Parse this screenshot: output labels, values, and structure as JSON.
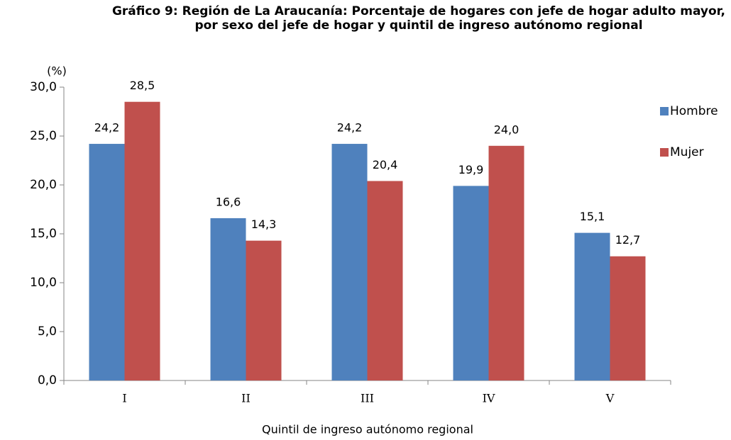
{
  "chart_data": {
    "type": "bar",
    "title": "Gráfico 9: Región de La Araucanía: Porcentaje de hogares con jefe de hogar adulto mayor,  por sexo del jefe de hogar y quintil de ingreso autónomo regional",
    "y_unit": "(%)",
    "x_label": "Quintil de ingreso autónomo regional",
    "categories": [
      "I",
      "II",
      "III",
      "IV",
      "V"
    ],
    "series": [
      {
        "name": "Hombre",
        "color": "#4f81bd",
        "values": [
          24.2,
          16.6,
          24.2,
          19.9,
          15.1
        ],
        "value_labels": [
          "24,2",
          "16,6",
          "24,2",
          "19,9",
          "15,1"
        ]
      },
      {
        "name": "Mujer",
        "color": "#c0504d",
        "values": [
          28.5,
          14.3,
          20.4,
          24.0,
          12.7
        ],
        "value_labels": [
          "28,5",
          "14,3",
          "20,4",
          "24,0",
          "12,7"
        ]
      }
    ],
    "ylim": [
      0,
      30
    ],
    "yticks": [
      {
        "value": 0,
        "label": "0,0"
      },
      {
        "value": 5,
        "label": "5,0"
      },
      {
        "value": 10,
        "label": "10,0"
      },
      {
        "value": 15,
        "label": "15,0"
      },
      {
        "value": 20,
        "label": "20,0"
      },
      {
        "value": 25,
        "label": "25,0"
      },
      {
        "value": 30,
        "label": "30,0"
      }
    ],
    "grid": false,
    "legend": "right"
  }
}
